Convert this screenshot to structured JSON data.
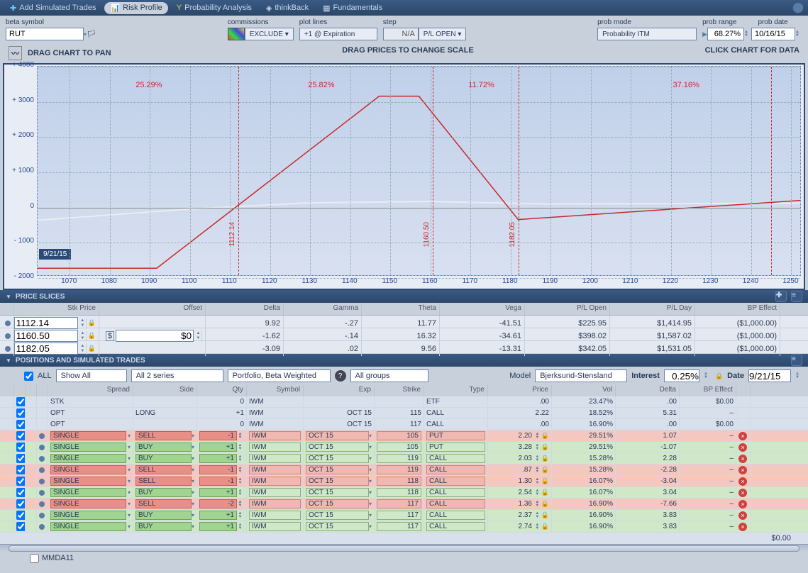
{
  "topbar": {
    "tabs": [
      {
        "label": "Add Simulated Trades",
        "icon": "+"
      },
      {
        "label": "Risk Profile",
        "icon": "⚠",
        "active": true
      },
      {
        "label": "Probability Analysis",
        "icon": "Y"
      },
      {
        "label": "thinkBack",
        "icon": "◈"
      },
      {
        "label": "Fundamentals",
        "icon": "▦"
      }
    ]
  },
  "controls": {
    "beta_symbol_label": "beta symbol",
    "beta_symbol_value": "RUT",
    "commissions_label": "commissions",
    "commissions_value": "EXCLUDE",
    "plot_lines_label": "plot lines",
    "plot_lines_value": "+1 @ Expiration",
    "step_label": "step",
    "step_value": "N/A",
    "pl_open_label": "P/L OPEN",
    "prob_mode_label": "prob mode",
    "prob_mode_value": "Probability ITM",
    "prob_range_label": "prob range",
    "prob_range_value": "68.27%",
    "prob_date_label": "prob date",
    "prob_date_value": "10/16/15"
  },
  "chart": {
    "hint_left": "DRAG CHART TO PAN",
    "hint_mid": "DRAG PRICES TO CHANGE SCALE",
    "hint_right": "CLICK CHART FOR DATA",
    "y_ticks": [
      4000,
      3000,
      2000,
      1000,
      0,
      -1000,
      -2000
    ],
    "y_min": -2000,
    "y_max": 4000,
    "x_ticks": [
      1070,
      1080,
      1090,
      1100,
      1110,
      1120,
      1130,
      1140,
      1150,
      1160,
      1170,
      1180,
      1190,
      1200,
      1210,
      1220,
      1230,
      1240,
      1250
    ],
    "x_min": 1062,
    "x_max": 1254,
    "prob_labels": [
      {
        "x": 1090,
        "text": "25.29%"
      },
      {
        "x": 1133,
        "text": "25.82%"
      },
      {
        "x": 1173,
        "text": "11.72%"
      },
      {
        "x": 1224,
        "text": "37.16%"
      }
    ],
    "vlines": [
      {
        "x": 1112.14,
        "label": "1112.14"
      },
      {
        "x": 1160.5,
        "label": "1160.50"
      },
      {
        "x": 1182.05,
        "label": "1182.05"
      },
      {
        "x": 1245,
        "label": ""
      }
    ],
    "date_tag": "9/21/15",
    "pl_line_color": "#c82828",
    "pl_line": [
      {
        "x": 1062,
        "y": -1800
      },
      {
        "x": 1092,
        "y": -1800
      },
      {
        "x": 1148,
        "y": 3150
      },
      {
        "x": 1158,
        "y": 3150
      },
      {
        "x": 1183,
        "y": -400
      },
      {
        "x": 1254,
        "y": 150
      }
    ],
    "smooth_line_color": "#e8ecf4",
    "smooth_line": [
      {
        "x": 1062,
        "y": -420
      },
      {
        "x": 1100,
        "y": -100
      },
      {
        "x": 1130,
        "y": 80
      },
      {
        "x": 1160,
        "y": 120
      },
      {
        "x": 1190,
        "y": 50
      },
      {
        "x": 1254,
        "y": 70
      }
    ]
  },
  "slices": {
    "header": "PRICE SLICES",
    "cols": [
      "Stk Price",
      "Offset",
      "Delta",
      "Gamma",
      "Theta",
      "Vega",
      "P/L Open",
      "P/L Day",
      "BP Effect"
    ],
    "rows": [
      {
        "stk": "1112.14",
        "offset": "",
        "delta": "9.92",
        "gamma": "-.27",
        "theta": "11.77",
        "vega": "-41.51",
        "plopen": "$225.95",
        "plday": "$1,414.95",
        "bp": "($1,000.00)"
      },
      {
        "stk": "1160.50",
        "offset": "$0",
        "delta": "-1.62",
        "gamma": "-.14",
        "theta": "16.32",
        "vega": "-34.61",
        "plopen": "$398.02",
        "plday": "$1,587.02",
        "bp": "($1,000.00)",
        "offset_editable": true
      },
      {
        "stk": "1182.05",
        "offset": "",
        "delta": "-3.09",
        "gamma": ".02",
        "theta": "9.56",
        "vega": "-13.31",
        "plopen": "$342.05",
        "plday": "$1,531.05",
        "bp": "($1,000.00)"
      }
    ]
  },
  "positions": {
    "header": "POSITIONS AND SIMULATED TRADES",
    "all_label": "ALL",
    "show_all": "Show All",
    "series": "All 2 series",
    "portfolio": "Portfolio, Beta Weighted",
    "groups": "All groups",
    "model_label": "Model",
    "model_value": "Bjerksund-Stensland",
    "interest_label": "Interest",
    "interest_value": "0.25%",
    "date_label": "Date",
    "date_value": "9/21/15",
    "cols": [
      "",
      "",
      "",
      "",
      "Spread",
      "Side",
      "Qty",
      "Symbol",
      "Exp",
      "Strike",
      "Type",
      "Price",
      "Vol",
      "Delta",
      "BP Effect",
      ""
    ],
    "rows": [
      {
        "kind": "stk",
        "spread": "STK",
        "side": "",
        "qty": "0",
        "sym": "IWM",
        "exp": "",
        "strike": "",
        "type": "ETF",
        "price": ".00",
        "vol": "23.47%",
        "delta": ".00",
        "bp": "$0.00"
      },
      {
        "kind": "opt",
        "spread": "OPT",
        "side": "LONG",
        "qty": "+1",
        "sym": "IWM",
        "exp": "OCT 15",
        "strike": "115",
        "type": "CALL",
        "price": "2.22",
        "vol": "18.52%",
        "delta": "5.31",
        "bp": "–"
      },
      {
        "kind": "opt",
        "spread": "OPT",
        "side": "",
        "qty": "0",
        "sym": "IWM",
        "exp": "OCT 15",
        "strike": "117",
        "type": "CALL",
        "price": ".00",
        "vol": "16.90%",
        "delta": ".00",
        "bp": "$0.00"
      },
      {
        "kind": "sell",
        "spread": "SINGLE",
        "side": "SELL",
        "qty": "-1",
        "sym": "IWM",
        "exp": "OCT 15",
        "strike": "105",
        "type": "PUT",
        "price": "2.20",
        "vol": "29.51%",
        "delta": "1.07",
        "bp": "–"
      },
      {
        "kind": "buy",
        "spread": "SINGLE",
        "side": "BUY",
        "qty": "+1",
        "sym": "IWM",
        "exp": "OCT 15",
        "strike": "105",
        "type": "PUT",
        "price": "3.28",
        "vol": "29.51%",
        "delta": "-1.07",
        "bp": "–"
      },
      {
        "kind": "buy",
        "spread": "SINGLE",
        "side": "BUY",
        "qty": "+1",
        "sym": "IWM",
        "exp": "OCT 15",
        "strike": "119",
        "type": "CALL",
        "price": "2.03",
        "vol": "15.28%",
        "delta": "2.28",
        "bp": "–"
      },
      {
        "kind": "sell",
        "spread": "SINGLE",
        "side": "SELL",
        "qty": "-1",
        "sym": "IWM",
        "exp": "OCT 15",
        "strike": "119",
        "type": "CALL",
        "price": ".87",
        "vol": "15.28%",
        "delta": "-2.28",
        "bp": "–"
      },
      {
        "kind": "sell",
        "spread": "SINGLE",
        "side": "SELL",
        "qty": "-1",
        "sym": "IWM",
        "exp": "OCT 15",
        "strike": "118",
        "type": "CALL",
        "price": "1.30",
        "vol": "16.07%",
        "delta": "-3.04",
        "bp": "–"
      },
      {
        "kind": "buy",
        "spread": "SINGLE",
        "side": "BUY",
        "qty": "+1",
        "sym": "IWM",
        "exp": "OCT 15",
        "strike": "118",
        "type": "CALL",
        "price": "2.54",
        "vol": "16.07%",
        "delta": "3.04",
        "bp": "–"
      },
      {
        "kind": "sell",
        "spread": "SINGLE",
        "side": "SELL",
        "qty": "-2",
        "sym": "IWM",
        "exp": "OCT 15",
        "strike": "117",
        "type": "CALL",
        "price": "1.36",
        "vol": "16.90%",
        "delta": "-7.66",
        "bp": "–"
      },
      {
        "kind": "buy",
        "spread": "SINGLE",
        "side": "BUY",
        "qty": "+1",
        "sym": "IWM",
        "exp": "OCT 15",
        "strike": "117",
        "type": "CALL",
        "price": "2.37",
        "vol": "16.90%",
        "delta": "3.83",
        "bp": "–"
      },
      {
        "kind": "buy",
        "spread": "SINGLE",
        "side": "BUY",
        "qty": "+1",
        "sym": "IWM",
        "exp": "OCT 15",
        "strike": "117",
        "type": "CALL",
        "price": "2.74",
        "vol": "16.90%",
        "delta": "3.83",
        "bp": "–"
      }
    ],
    "total_bp": "$0.00",
    "footer_item": "MMDA11"
  }
}
